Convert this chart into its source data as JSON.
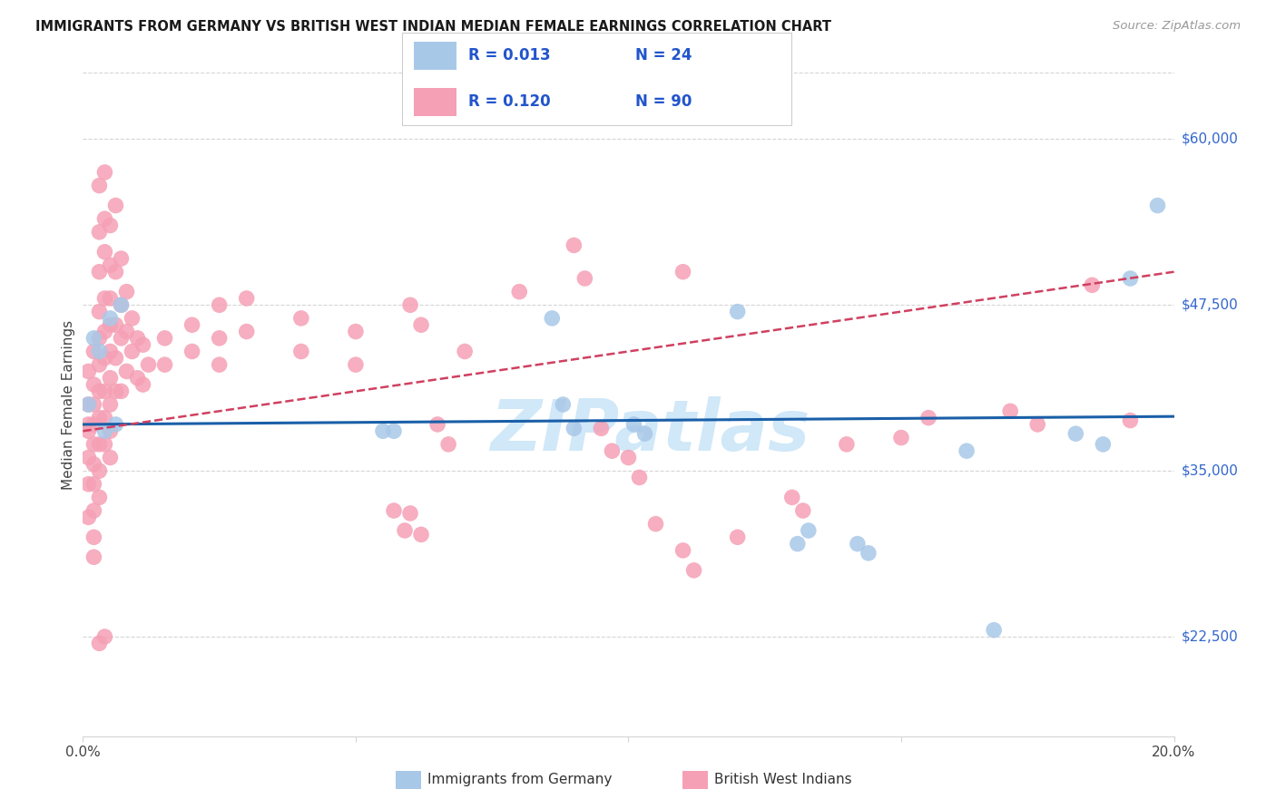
{
  "title": "IMMIGRANTS FROM GERMANY VS BRITISH WEST INDIAN MEDIAN FEMALE EARNINGS CORRELATION CHART",
  "source": "Source: ZipAtlas.com",
  "ylabel": "Median Female Earnings",
  "ytick_values": [
    22500,
    35000,
    47500,
    60000
  ],
  "ymin": 15000,
  "ymax": 65000,
  "xmin": 0.0,
  "xmax": 0.2,
  "germany_color": "#a8c8e8",
  "bwi_color": "#f5a0b5",
  "germany_line_color": "#1a5fa8",
  "bwi_line_color": "#d04060",
  "watermark_color": "#d0e8f8",
  "germany_points": [
    [
      0.001,
      40000
    ],
    [
      0.002,
      45000
    ],
    [
      0.003,
      44000
    ],
    [
      0.004,
      38000
    ],
    [
      0.005,
      46500
    ],
    [
      0.006,
      38500
    ],
    [
      0.007,
      47500
    ],
    [
      0.055,
      38000
    ],
    [
      0.057,
      38000
    ],
    [
      0.086,
      46500
    ],
    [
      0.088,
      40000
    ],
    [
      0.09,
      38200
    ],
    [
      0.101,
      38500
    ],
    [
      0.103,
      37800
    ],
    [
      0.12,
      47000
    ],
    [
      0.131,
      29500
    ],
    [
      0.133,
      30500
    ],
    [
      0.142,
      29500
    ],
    [
      0.144,
      28800
    ],
    [
      0.162,
      36500
    ],
    [
      0.167,
      23000
    ],
    [
      0.182,
      37800
    ],
    [
      0.187,
      37000
    ],
    [
      0.192,
      49500
    ],
    [
      0.197,
      55000
    ]
  ],
  "bwi_points": [
    [
      0.001,
      42500
    ],
    [
      0.001,
      40000
    ],
    [
      0.001,
      38000
    ],
    [
      0.001,
      36000
    ],
    [
      0.001,
      34000
    ],
    [
      0.001,
      31500
    ],
    [
      0.001,
      38500
    ],
    [
      0.002,
      44000
    ],
    [
      0.002,
      41500
    ],
    [
      0.002,
      40000
    ],
    [
      0.002,
      38500
    ],
    [
      0.002,
      37000
    ],
    [
      0.002,
      35500
    ],
    [
      0.002,
      34000
    ],
    [
      0.002,
      32000
    ],
    [
      0.002,
      30000
    ],
    [
      0.002,
      28500
    ],
    [
      0.003,
      56500
    ],
    [
      0.003,
      53000
    ],
    [
      0.003,
      50000
    ],
    [
      0.003,
      47000
    ],
    [
      0.003,
      45000
    ],
    [
      0.003,
      43000
    ],
    [
      0.003,
      41000
    ],
    [
      0.003,
      39000
    ],
    [
      0.003,
      37000
    ],
    [
      0.003,
      35000
    ],
    [
      0.003,
      33000
    ],
    [
      0.004,
      57500
    ],
    [
      0.004,
      54000
    ],
    [
      0.004,
      51500
    ],
    [
      0.004,
      48000
    ],
    [
      0.004,
      45500
    ],
    [
      0.004,
      43500
    ],
    [
      0.004,
      41000
    ],
    [
      0.004,
      39000
    ],
    [
      0.004,
      37000
    ],
    [
      0.005,
      53500
    ],
    [
      0.005,
      50500
    ],
    [
      0.005,
      48000
    ],
    [
      0.005,
      46000
    ],
    [
      0.005,
      44000
    ],
    [
      0.005,
      42000
    ],
    [
      0.005,
      40000
    ],
    [
      0.005,
      38000
    ],
    [
      0.005,
      36000
    ],
    [
      0.006,
      55000
    ],
    [
      0.006,
      50000
    ],
    [
      0.006,
      46000
    ],
    [
      0.006,
      43500
    ],
    [
      0.006,
      41000
    ],
    [
      0.007,
      51000
    ],
    [
      0.007,
      47500
    ],
    [
      0.007,
      45000
    ],
    [
      0.007,
      41000
    ],
    [
      0.008,
      48500
    ],
    [
      0.008,
      45500
    ],
    [
      0.008,
      42500
    ],
    [
      0.009,
      46500
    ],
    [
      0.009,
      44000
    ],
    [
      0.01,
      45000
    ],
    [
      0.01,
      42000
    ],
    [
      0.011,
      44500
    ],
    [
      0.011,
      41500
    ],
    [
      0.012,
      43000
    ],
    [
      0.015,
      45000
    ],
    [
      0.015,
      43000
    ],
    [
      0.02,
      46000
    ],
    [
      0.02,
      44000
    ],
    [
      0.025,
      47500
    ],
    [
      0.025,
      45000
    ],
    [
      0.025,
      43000
    ],
    [
      0.03,
      48000
    ],
    [
      0.03,
      45500
    ],
    [
      0.04,
      46500
    ],
    [
      0.04,
      44000
    ],
    [
      0.05,
      45500
    ],
    [
      0.05,
      43000
    ],
    [
      0.06,
      47500
    ],
    [
      0.062,
      46000
    ],
    [
      0.065,
      38500
    ],
    [
      0.067,
      37000
    ],
    [
      0.07,
      44000
    ],
    [
      0.08,
      48500
    ],
    [
      0.09,
      52000
    ],
    [
      0.092,
      49500
    ],
    [
      0.095,
      38200
    ],
    [
      0.097,
      36500
    ],
    [
      0.105,
      31000
    ],
    [
      0.11,
      50000
    ],
    [
      0.12,
      30000
    ],
    [
      0.13,
      33000
    ],
    [
      0.132,
      32000
    ],
    [
      0.14,
      37000
    ],
    [
      0.15,
      37500
    ],
    [
      0.155,
      39000
    ],
    [
      0.17,
      39500
    ],
    [
      0.175,
      38500
    ],
    [
      0.185,
      49000
    ],
    [
      0.192,
      38800
    ],
    [
      0.003,
      22000
    ],
    [
      0.004,
      22500
    ],
    [
      0.057,
      32000
    ],
    [
      0.059,
      30500
    ],
    [
      0.06,
      31800
    ],
    [
      0.062,
      30200
    ],
    [
      0.1,
      36000
    ],
    [
      0.102,
      34500
    ],
    [
      0.11,
      29000
    ],
    [
      0.112,
      27500
    ]
  ]
}
